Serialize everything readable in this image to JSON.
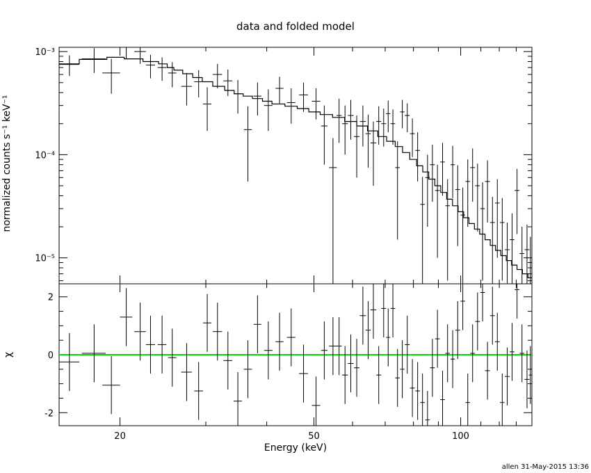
{
  "chart_data": [
    {
      "panel": "top",
      "type": "scatter",
      "title": "data and folded model",
      "ylabel": "normalized counts s⁻¹ keV⁻¹",
      "xlabel": "",
      "xscale": "log",
      "yscale": "log",
      "xlim": [
        15,
        140
      ],
      "ylim": [
        5.6e-06,
        0.0011
      ],
      "yticks": [
        1e-05,
        0.0001,
        0.001
      ],
      "ytick_labels": [
        "10⁻⁵",
        "10⁻⁴",
        "10⁻³"
      ],
      "grid": false,
      "series": [
        {
          "kind": "data",
          "style": "crosses with error bars",
          "color": "#000000",
          "points": [
            [
              15.75,
              0.00075,
              0.75,
              0.00017
            ],
            [
              17.7,
              0.00085,
              1.0,
              0.00023
            ],
            [
              19.2,
              0.00062,
              0.8,
              0.00023
            ],
            [
              20.6,
              0.0011,
              0.6,
              0.00025
            ],
            [
              22.0,
              0.001,
              0.6,
              0.00024
            ],
            [
              23.1,
              0.00074,
              0.5,
              0.00019
            ],
            [
              24.4,
              0.0007,
              0.5,
              0.00018
            ],
            [
              25.6,
              0.00062,
              0.5,
              0.00017
            ],
            [
              27.4,
              0.00046,
              0.7,
              0.00016
            ],
            [
              29.0,
              0.00051,
              0.6,
              0.00015
            ],
            [
              30.2,
              0.00031,
              0.6,
              0.00014
            ],
            [
              31.7,
              0.0006,
              0.7,
              0.00016
            ],
            [
              33.3,
              0.00052,
              0.7,
              0.00015
            ],
            [
              34.9,
              0.00039,
              0.7,
              0.00014
            ],
            [
              36.6,
              0.000175,
              0.7,
              0.00012
            ],
            [
              38.3,
              0.00037,
              0.7,
              0.00013
            ],
            [
              40.3,
              0.0003,
              0.8,
              0.00013
            ],
            [
              42.5,
              0.00044,
              0.8,
              0.00013
            ],
            [
              44.9,
              0.00032,
              0.9,
              0.00012
            ],
            [
              47.6,
              0.00038,
              1.0,
              0.00012
            ],
            [
              50.5,
              0.00033,
              1.0,
              0.00011
            ],
            [
              52.5,
              0.00019,
              0.8,
              0.00011
            ],
            [
              54.7,
              7.5e-05,
              1.0,
              7e-05
            ],
            [
              56.3,
              0.00024,
              0.7,
              0.00011
            ],
            [
              57.9,
              0.0002,
              0.8,
              0.0001
            ],
            [
              59.5,
              0.00024,
              0.8,
              0.0001
            ],
            [
              61.2,
              0.00015,
              0.8,
              9e-05
            ],
            [
              63.0,
              0.00021,
              0.9,
              9e-05
            ],
            [
              64.6,
              0.00016,
              0.8,
              8.5e-05
            ],
            [
              66.2,
              0.00013,
              0.9,
              8e-05
            ],
            [
              67.9,
              0.00021,
              0.8,
              8.5e-05
            ],
            [
              69.5,
              0.0002,
              0.8,
              8e-05
            ],
            [
              71.0,
              0.00025,
              0.7,
              8.5e-05
            ],
            [
              72.6,
              0.0002,
              0.8,
              7.5e-05
            ],
            [
              74.2,
              7.5e-05,
              0.8,
              6e-05
            ],
            [
              75.9,
              0.00026,
              0.8,
              8e-05
            ],
            [
              77.7,
              0.00024,
              0.9,
              7.5e-05
            ],
            [
              79.6,
              0.00016,
              0.9,
              6.5e-05
            ],
            [
              81.6,
              0.00011,
              0.9,
              5.5e-05
            ],
            [
              83.5,
              3.3e-05,
              0.9,
              2.8e-05
            ],
            [
              85.5,
              6e-05,
              0.9,
              4e-05
            ],
            [
              87.5,
              8e-05,
              1.0,
              4.5e-05
            ],
            [
              89.6,
              4.5e-05,
              1.0,
              3.5e-05
            ],
            [
              91.8,
              8.5e-05,
              1.0,
              4.5e-05
            ],
            [
              94.0,
              3.2e-05,
              1.0,
              2.6e-05
            ],
            [
              96.3,
              8e-05,
              1.0,
              4.2e-05
            ],
            [
              98.6,
              4.6e-05,
              1.1,
              3.3e-05
            ],
            [
              101.0,
              2.6e-05,
              1.1,
              2.2e-05
            ],
            [
              103.4,
              5.5e-05,
              1.1,
              3.5e-05
            ],
            [
              105.8,
              7.5e-05,
              1.2,
              4e-05
            ],
            [
              108.3,
              5e-05,
              1.2,
              3.2e-05
            ],
            [
              110.9,
              3e-05,
              1.2,
              2.4e-05
            ],
            [
              113.5,
              5.5e-05,
              1.3,
              3.3e-05
            ],
            [
              116.2,
              2.2e-05,
              1.3,
              1.7e-05
            ],
            [
              118.9,
              3.4e-05,
              1.3,
              2.4e-05
            ],
            [
              121.7,
              2.2e-05,
              1.3,
              1.6e-05
            ],
            [
              124.6,
              1.2e-05,
              1.4,
              1e-05
            ],
            [
              127.5,
              1.5e-05,
              1.4,
              1.2e-05
            ],
            [
              130.5,
              4.5e-05,
              1.5,
              2.8e-05
            ],
            [
              133.6,
              1.1e-05,
              1.5,
              9e-06
            ],
            [
              136.8,
              1.2e-05,
              1.6,
              9e-06
            ],
            [
              139.0,
              9e-06,
              1.0,
              7e-06
            ]
          ]
        },
        {
          "kind": "model",
          "style": "histogram step line",
          "color": "#000000",
          "steps": [
            [
              14.95,
              0.00076
            ],
            [
              16.5,
              0.00084
            ],
            [
              18.8,
              0.00088
            ],
            [
              20.4,
              0.00085
            ],
            [
              22.3,
              0.0008
            ],
            [
              24.0,
              0.00076
            ],
            [
              25.0,
              0.0007
            ],
            [
              25.8,
              0.00066
            ],
            [
              26.9,
              0.00061
            ],
            [
              28.2,
              0.00056
            ],
            [
              29.5,
              0.00051
            ],
            [
              31.0,
              0.00046
            ],
            [
              32.8,
              0.00042
            ],
            [
              34.3,
              0.00039
            ],
            [
              35.8,
              0.00037
            ],
            [
              37.4,
              0.00035
            ],
            [
              39.2,
              0.00033
            ],
            [
              41.0,
              0.00031
            ],
            [
              43.6,
              0.000295
            ],
            [
              46.2,
              0.00028
            ],
            [
              48.8,
              0.00026
            ],
            [
              51.5,
              0.000245
            ],
            [
              54.6,
              0.00023
            ],
            [
              57.8,
              0.00021
            ],
            [
              61.2,
              0.00019
            ],
            [
              64.4,
              0.00017
            ],
            [
              67.6,
              0.00015
            ],
            [
              70.5,
              0.000135
            ],
            [
              73.4,
              0.00012
            ],
            [
              76.0,
              0.000105
            ],
            [
              78.6,
              9e-05
            ],
            [
              81.2,
              7.8e-05
            ],
            [
              83.6,
              6.8e-05
            ],
            [
              86.0,
              5.8e-05
            ],
            [
              88.5,
              5e-05
            ],
            [
              91.0,
              4.3e-05
            ],
            [
              93.6,
              3.7e-05
            ],
            [
              96.2,
              3.2e-05
            ],
            [
              98.8,
              2.8e-05
            ],
            [
              101.4,
              2.45e-05
            ],
            [
              104.0,
              2.15e-05
            ],
            [
              106.7,
              1.9e-05
            ],
            [
              109.4,
              1.7e-05
            ],
            [
              112.2,
              1.5e-05
            ],
            [
              115.0,
              1.32e-05
            ],
            [
              117.9,
              1.18e-05
            ],
            [
              120.9,
              1.05e-05
            ],
            [
              124.0,
              9.4e-06
            ],
            [
              127.2,
              8.5e-06
            ],
            [
              130.5,
              7.7e-06
            ],
            [
              133.9,
              7e-06
            ],
            [
              137.4,
              6.4e-06
            ],
            [
              140.0,
              6.4e-06
            ]
          ]
        }
      ]
    },
    {
      "panel": "bottom",
      "type": "scatter",
      "xlabel": "Energy (keV)",
      "ylabel": "χ",
      "xscale": "log",
      "xlim": [
        15,
        140
      ],
      "ylim": [
        -2.45,
        2.45
      ],
      "xticks": [
        20,
        50,
        100
      ],
      "yticks": [
        -2,
        0,
        2
      ],
      "grid": false,
      "reference_line": {
        "y": 0,
        "color": "#00dd00"
      },
      "series": [
        {
          "kind": "residuals",
          "color": "#000000",
          "points": [
            [
              15.75,
              -0.25,
              0.75,
              1.0
            ],
            [
              17.7,
              0.05,
              1.0,
              1.0
            ],
            [
              19.2,
              -1.05,
              0.8,
              1.0
            ],
            [
              20.6,
              1.3,
              0.6,
              1.0
            ],
            [
              22.0,
              0.8,
              0.6,
              1.0
            ],
            [
              23.1,
              0.35,
              0.5,
              1.0
            ],
            [
              24.4,
              0.35,
              0.5,
              1.0
            ],
            [
              25.6,
              -0.1,
              0.5,
              1.0
            ],
            [
              27.4,
              -0.6,
              0.7,
              1.0
            ],
            [
              29.0,
              -1.25,
              0.6,
              1.0
            ],
            [
              30.2,
              1.1,
              0.6,
              1.0
            ],
            [
              31.7,
              0.8,
              0.7,
              1.0
            ],
            [
              33.3,
              -0.2,
              0.7,
              1.0
            ],
            [
              34.9,
              -1.6,
              0.7,
              1.0
            ],
            [
              36.6,
              -0.5,
              0.7,
              1.0
            ],
            [
              38.3,
              1.05,
              0.7,
              1.0
            ],
            [
              40.3,
              0.15,
              0.8,
              1.0
            ],
            [
              42.5,
              0.45,
              0.8,
              1.0
            ],
            [
              44.9,
              0.6,
              0.9,
              1.0
            ],
            [
              47.6,
              -0.65,
              1.0,
              1.0
            ],
            [
              50.5,
              -1.75,
              1.0,
              1.0
            ],
            [
              52.5,
              0.15,
              0.8,
              1.0
            ],
            [
              54.7,
              0.3,
              1.0,
              1.0
            ],
            [
              56.3,
              0.3,
              0.7,
              1.0
            ],
            [
              57.9,
              -0.7,
              0.8,
              1.0
            ],
            [
              59.5,
              -0.3,
              0.8,
              1.0
            ],
            [
              61.2,
              -0.45,
              0.8,
              1.0
            ],
            [
              63.0,
              1.35,
              0.9,
              1.0
            ],
            [
              64.6,
              0.85,
              0.8,
              1.0
            ],
            [
              66.2,
              1.55,
              0.9,
              1.0
            ],
            [
              67.9,
              -0.7,
              0.8,
              1.0
            ],
            [
              69.5,
              1.6,
              0.8,
              1.0
            ],
            [
              71.0,
              0.6,
              0.7,
              1.0
            ],
            [
              72.6,
              1.6,
              0.8,
              1.0
            ],
            [
              74.2,
              -0.8,
              0.8,
              1.0
            ],
            [
              75.9,
              -0.5,
              0.8,
              1.0
            ],
            [
              77.7,
              0.35,
              0.9,
              1.0
            ],
            [
              79.6,
              -1.15,
              0.9,
              1.0
            ],
            [
              81.6,
              -1.25,
              0.9,
              1.0
            ],
            [
              83.5,
              -1.65,
              0.9,
              1.0
            ],
            [
              85.5,
              -2.25,
              0.9,
              1.0
            ],
            [
              87.5,
              -0.45,
              1.0,
              1.0
            ],
            [
              89.6,
              0.55,
              1.0,
              1.0
            ],
            [
              91.8,
              -1.55,
              1.0,
              1.0
            ],
            [
              94.0,
              0.05,
              1.0,
              1.0
            ],
            [
              96.3,
              -0.15,
              1.0,
              1.0
            ],
            [
              98.6,
              0.85,
              1.1,
              1.0
            ],
            [
              101.0,
              1.85,
              1.1,
              1.0
            ],
            [
              103.4,
              -1.65,
              1.1,
              1.0
            ],
            [
              105.8,
              0.05,
              1.2,
              1.0
            ],
            [
              108.3,
              1.15,
              1.2,
              1.0
            ],
            [
              110.9,
              2.15,
              1.2,
              1.0
            ],
            [
              113.5,
              -0.55,
              1.3,
              1.0
            ],
            [
              116.2,
              1.35,
              1.3,
              1.0
            ],
            [
              118.9,
              0.45,
              1.3,
              1.0
            ],
            [
              121.7,
              -1.65,
              1.3,
              1.0
            ],
            [
              124.6,
              -0.75,
              1.4,
              1.0
            ],
            [
              127.5,
              0.1,
              1.4,
              1.0
            ],
            [
              130.5,
              2.25,
              1.5,
              1.0
            ],
            [
              133.6,
              0.05,
              1.5,
              1.0
            ],
            [
              136.8,
              -0.85,
              1.6,
              1.0
            ],
            [
              139.0,
              -0.7,
              1.0,
              1.0
            ]
          ]
        }
      ]
    }
  ],
  "footer": "allen 31-May-2015 13:36"
}
